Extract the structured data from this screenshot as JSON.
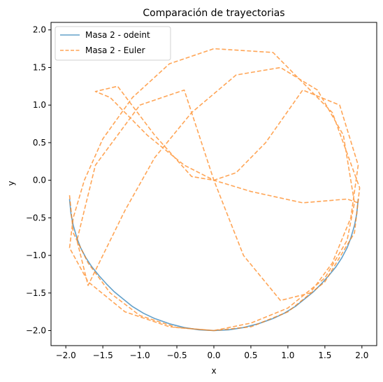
{
  "chart_data": {
    "type": "line",
    "title": "Comparación de trayectorias",
    "xlabel": "x",
    "ylabel": "y",
    "xlim": [
      -2.2,
      2.2
    ],
    "ylim": [
      -2.2,
      2.1
    ],
    "xticks": [
      -2.0,
      -1.5,
      -1.0,
      -0.5,
      0.0,
      0.5,
      1.0,
      1.5,
      2.0
    ],
    "yticks": [
      -2.0,
      -1.5,
      -1.0,
      -0.5,
      0.0,
      0.5,
      1.0,
      1.5,
      2.0
    ],
    "grid": false,
    "legend_placement": "upper-left",
    "series": [
      {
        "name": "Masa 2 - odeint",
        "style": "solid",
        "color": "#1f77b4",
        "x": [
          -1.95,
          -1.93,
          -1.9,
          -1.85,
          -1.8,
          -1.73,
          -1.65,
          -1.55,
          -1.45,
          -1.35,
          -1.25,
          -1.1,
          -0.95,
          -0.8,
          -0.6,
          -0.4,
          -0.2,
          0.0,
          0.2,
          0.4,
          0.6,
          0.8,
          0.95,
          1.1,
          1.25,
          1.35,
          1.45,
          1.55,
          1.65,
          1.73,
          1.8,
          1.85,
          1.9,
          1.93,
          1.95
        ],
        "y": [
          -0.25,
          -0.45,
          -0.6,
          -0.77,
          -0.9,
          -1.03,
          -1.15,
          -1.27,
          -1.38,
          -1.48,
          -1.56,
          -1.68,
          -1.77,
          -1.84,
          -1.91,
          -1.96,
          -1.99,
          -2.0,
          -1.99,
          -1.96,
          -1.91,
          -1.84,
          -1.77,
          -1.68,
          -1.56,
          -1.48,
          -1.38,
          -1.27,
          -1.15,
          -1.03,
          -0.9,
          -0.77,
          -0.6,
          -0.45,
          -0.25
        ]
      },
      {
        "name": "Masa 2 - Euler",
        "style": "dashed",
        "color": "#ff7f0e",
        "x": [
          -1.95,
          -1.9,
          -1.7,
          -1.4,
          -1.0,
          -0.5,
          0.0,
          0.5,
          1.0,
          1.5,
          1.9,
          1.97,
          1.6,
          0.8,
          0.0,
          -0.6,
          -1.1,
          -1.5,
          -1.75,
          -1.9,
          -1.95,
          -1.7,
          -1.2,
          -0.6,
          0.0,
          0.5,
          1.0,
          1.5,
          1.8,
          1.9,
          1.75,
          1.4,
          0.9,
          0.3,
          -0.3,
          -0.8,
          -1.2,
          -1.5,
          -1.7,
          -1.85,
          -1.6,
          -1.0,
          -0.4,
          0.0,
          0.4,
          0.9,
          1.3,
          1.6,
          1.85,
          1.95,
          1.7,
          1.2,
          0.7,
          0.3,
          0.0,
          -0.3,
          -0.8,
          -1.3,
          -1.6,
          -1.4,
          -0.9,
          -0.4,
          0.0,
          0.5,
          1.2,
          1.8,
          1.95
        ],
        "y": [
          -0.2,
          -0.7,
          -1.1,
          -1.5,
          -1.8,
          -1.96,
          -2.0,
          -1.95,
          -1.75,
          -1.35,
          -0.7,
          -0.1,
          0.9,
          1.7,
          1.75,
          1.55,
          1.1,
          0.55,
          0.0,
          -0.5,
          -0.9,
          -1.35,
          -1.75,
          -1.95,
          -2.0,
          -1.9,
          -1.7,
          -1.3,
          -0.8,
          -0.3,
          0.6,
          1.2,
          1.5,
          1.4,
          0.9,
          0.3,
          -0.4,
          -1.0,
          -1.4,
          -0.8,
          0.2,
          1.0,
          1.2,
          0.0,
          -1.0,
          -1.6,
          -1.5,
          -1.1,
          -0.5,
          0.2,
          1.0,
          1.2,
          0.5,
          0.1,
          0.0,
          0.05,
          0.6,
          1.25,
          1.18,
          1.1,
          0.6,
          0.2,
          0.0,
          -0.15,
          -0.3,
          -0.25,
          -0.3
        ]
      }
    ]
  }
}
